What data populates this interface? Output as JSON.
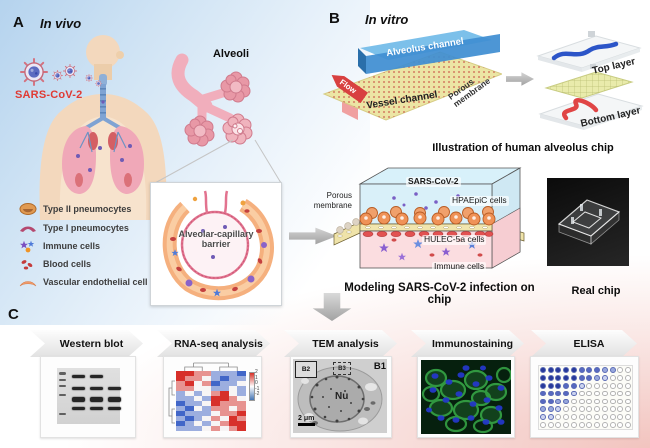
{
  "figure": {
    "panelA": {
      "label": "A",
      "title": "In vivo",
      "virus_label": "SARS-CoV-2",
      "alveoli_label": "Alveoli",
      "legend": [
        {
          "icon": "type-ii-pneumocyte-icon",
          "label": "Type II pneumocytes"
        },
        {
          "icon": "type-i-pneumocyte-icon",
          "label": "Type I pneumocytes"
        },
        {
          "icon": "immune-cells-icon",
          "label": "Immune cells"
        },
        {
          "icon": "blood-cells-icon",
          "label": "Blood cells"
        },
        {
          "icon": "endothelial-cell-icon",
          "label": "Vascular endothelial cell"
        }
      ],
      "inset_caption_line1": "Alveolar-capillary",
      "inset_caption_line2": "barrier"
    },
    "panelB": {
      "label": "B",
      "title": "In vitro",
      "chip": {
        "alveolus_channel": "Alveolus channel",
        "vessel_channel": "Vessel channel",
        "flow": "Flow",
        "porous_line1": "Porous",
        "porous_line2": "membrane"
      },
      "exploded": {
        "top": "Top layer",
        "bottom": "Bottom layer"
      },
      "chip_caption": "Illustration of human alveolus chip",
      "modeling": {
        "virus": "SARS-CoV-2",
        "epithelial": "HPAEpiC cells",
        "endothelial": "HULEC-5a cells",
        "immune": "Immune cells",
        "porous_line1": "Porous",
        "porous_line2": "membrane",
        "caption": "Modeling SARS-CoV-2 infection on chip"
      },
      "real_chip_caption": "Real chip"
    },
    "panelC": {
      "label": "C",
      "steps": [
        "Western blot",
        "RNA-seq analysis",
        "TEM analysis",
        "Immunostaining",
        "ELISA"
      ],
      "tem": {
        "tag": "B1",
        "inset_tag": "B2",
        "inset_tag2": "B3",
        "nucleus": "Nu",
        "scale_bar": "2 μm"
      },
      "heatmap": {
        "colorbar_ticks": [
          "2",
          "1",
          "0",
          "-1",
          "-2"
        ],
        "values": [
          [
            2,
            2,
            1,
            1,
            -1,
            -1,
            -1,
            -2
          ],
          [
            2,
            1,
            1,
            0,
            -1,
            -2,
            -1,
            -1
          ],
          [
            1,
            2,
            0,
            1,
            -2,
            -1,
            -1,
            0
          ],
          [
            1,
            1,
            0,
            0,
            -1,
            -1,
            0,
            -1
          ],
          [
            -1,
            0,
            -1,
            0,
            1,
            2,
            0,
            -1
          ],
          [
            -1,
            -1,
            0,
            -1,
            2,
            2,
            1,
            0
          ],
          [
            -2,
            -1,
            -1,
            0,
            2,
            1,
            1,
            1
          ],
          [
            -1,
            -2,
            0,
            -1,
            1,
            1,
            0,
            1
          ],
          [
            -2,
            -1,
            -1,
            -1,
            0,
            1,
            1,
            2
          ],
          [
            -1,
            -2,
            -1,
            0,
            1,
            0,
            2,
            1
          ],
          [
            -2,
            -1,
            0,
            -1,
            0,
            1,
            2,
            2
          ],
          [
            -1,
            -1,
            -1,
            0,
            1,
            0,
            1,
            2
          ]
        ]
      },
      "western_blot": {
        "ladder": [
          8,
          19,
          30,
          46,
          80
        ],
        "rows": [
          {
            "y": 12,
            "lanes": [
              1,
              1,
              0
            ]
          },
          {
            "y": 34,
            "lanes": [
              1,
              1,
              1
            ]
          },
          {
            "y": 52,
            "lanes": [
              2,
              2,
              2
            ]
          },
          {
            "y": 70,
            "lanes": [
              1,
              1,
              1
            ]
          }
        ]
      },
      "elisa": {
        "wells": [
          [
            4,
            4,
            4,
            4,
            4,
            3,
            3,
            3,
            2,
            2,
            0,
            0
          ],
          [
            4,
            4,
            4,
            4,
            4,
            3,
            3,
            2,
            1,
            0,
            0,
            0
          ],
          [
            4,
            4,
            4,
            3,
            3,
            1,
            0,
            0,
            0,
            0,
            0,
            0
          ],
          [
            3,
            3,
            3,
            3,
            1,
            0,
            0,
            0,
            0,
            0,
            0,
            0
          ],
          [
            3,
            3,
            2,
            2,
            0,
            0,
            0,
            0,
            0,
            0,
            0,
            0
          ],
          [
            2,
            2,
            1,
            0,
            0,
            0,
            0,
            0,
            0,
            0,
            0,
            0
          ],
          [
            1,
            1,
            0,
            0,
            0,
            0,
            0,
            0,
            0,
            0,
            0,
            0
          ],
          [
            0,
            0,
            0,
            0,
            0,
            0,
            0,
            0,
            0,
            0,
            0,
            0
          ]
        ]
      }
    }
  }
}
